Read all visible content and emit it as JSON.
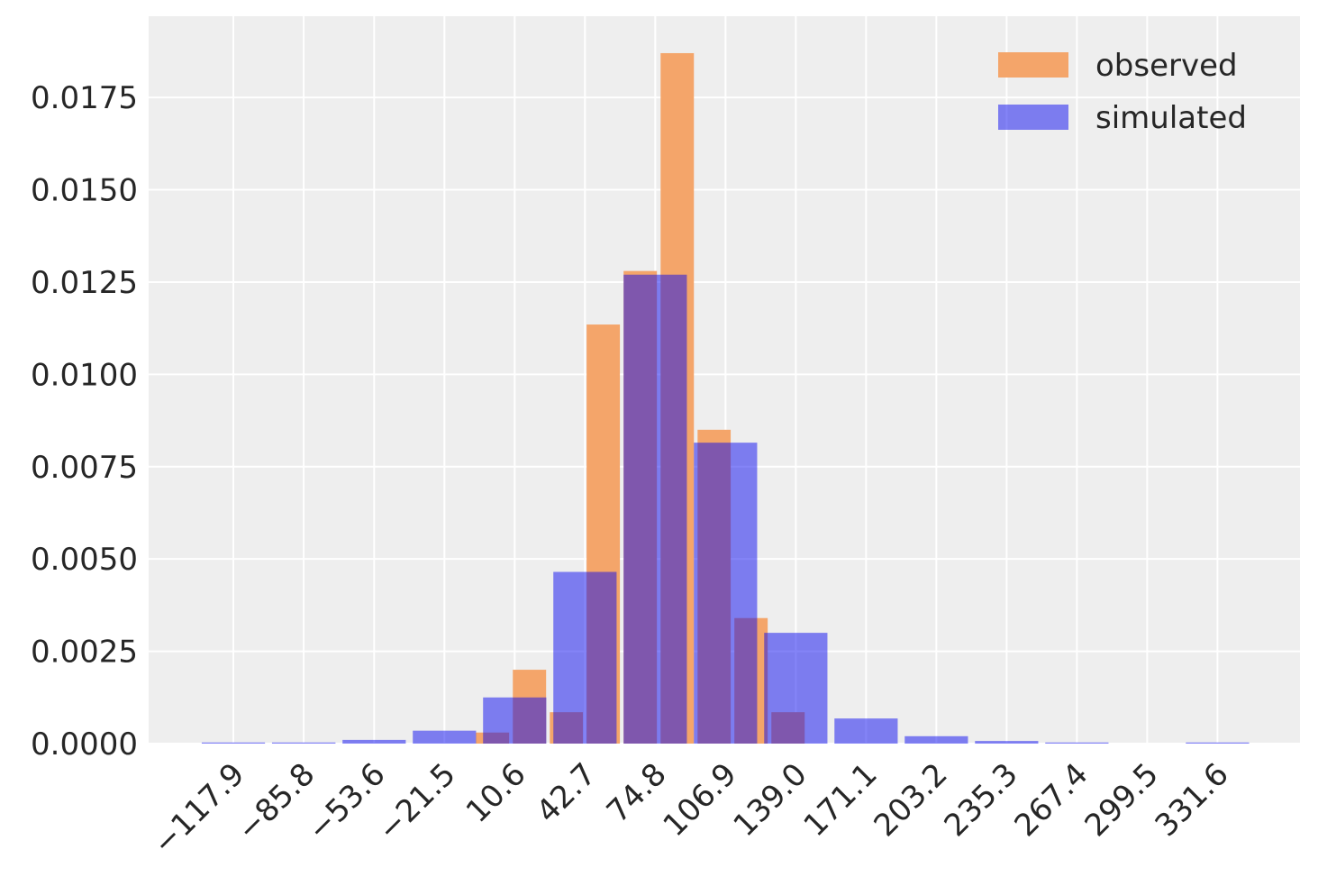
{
  "chart_data": {
    "type": "histogram",
    "series": [
      {
        "name": "observed",
        "color": "#f4a56a",
        "bins": [
          -8.0,
          8.9,
          25.8,
          42.6,
          59.5,
          76.4,
          93.3,
          110.1,
          127.0,
          143.9
        ],
        "values": [
          0.0003,
          0.002,
          0.00085,
          0.01135,
          0.0128,
          0.0187,
          0.0085,
          0.0034,
          0.00085
        ]
      },
      {
        "name": "simulated",
        "color": "#0a0af0",
        "bins": [
          -133.95,
          -101.85,
          -69.65,
          -37.55,
          -5.45,
          26.65,
          58.75,
          90.85,
          122.95,
          155.05,
          187.15,
          219.25,
          251.35,
          283.45,
          315.55,
          347.65
        ],
        "values": [
          3e-05,
          3e-05,
          0.0001,
          0.00035,
          0.00125,
          0.00465,
          0.0127,
          0.00815,
          0.003,
          0.00068,
          0.0002,
          7e-05,
          3e-05,
          0,
          3e-05
        ]
      }
    ],
    "xlim": [
      -156.6,
      369.3
    ],
    "ylim": [
      0,
      0.0197
    ],
    "xticks": [
      {
        "value": -117.9,
        "label": "−117.9"
      },
      {
        "value": -85.8,
        "label": "−85.8"
      },
      {
        "value": -53.6,
        "label": "−53.6"
      },
      {
        "value": -21.5,
        "label": "−21.5"
      },
      10.6,
      42.7,
      74.8,
      106.9,
      {
        "value": 139.0,
        "label": "139.0"
      },
      171.1,
      203.2,
      235.3,
      267.4,
      299.5,
      331.6
    ],
    "yticks": [
      {
        "value": 0,
        "label": "0.0000"
      },
      {
        "value": 0.0025,
        "label": "0.0025"
      },
      {
        "value": 0.005,
        "label": "0.0050"
      },
      {
        "value": 0.0075,
        "label": "0.0075"
      },
      {
        "value": 0.01,
        "label": "0.0100"
      },
      {
        "value": 0.0125,
        "label": "0.0125"
      },
      {
        "value": 0.015,
        "label": "0.0150"
      },
      {
        "value": 0.0175,
        "label": "0.0175"
      }
    ],
    "grid": true,
    "legend": "upper right"
  }
}
